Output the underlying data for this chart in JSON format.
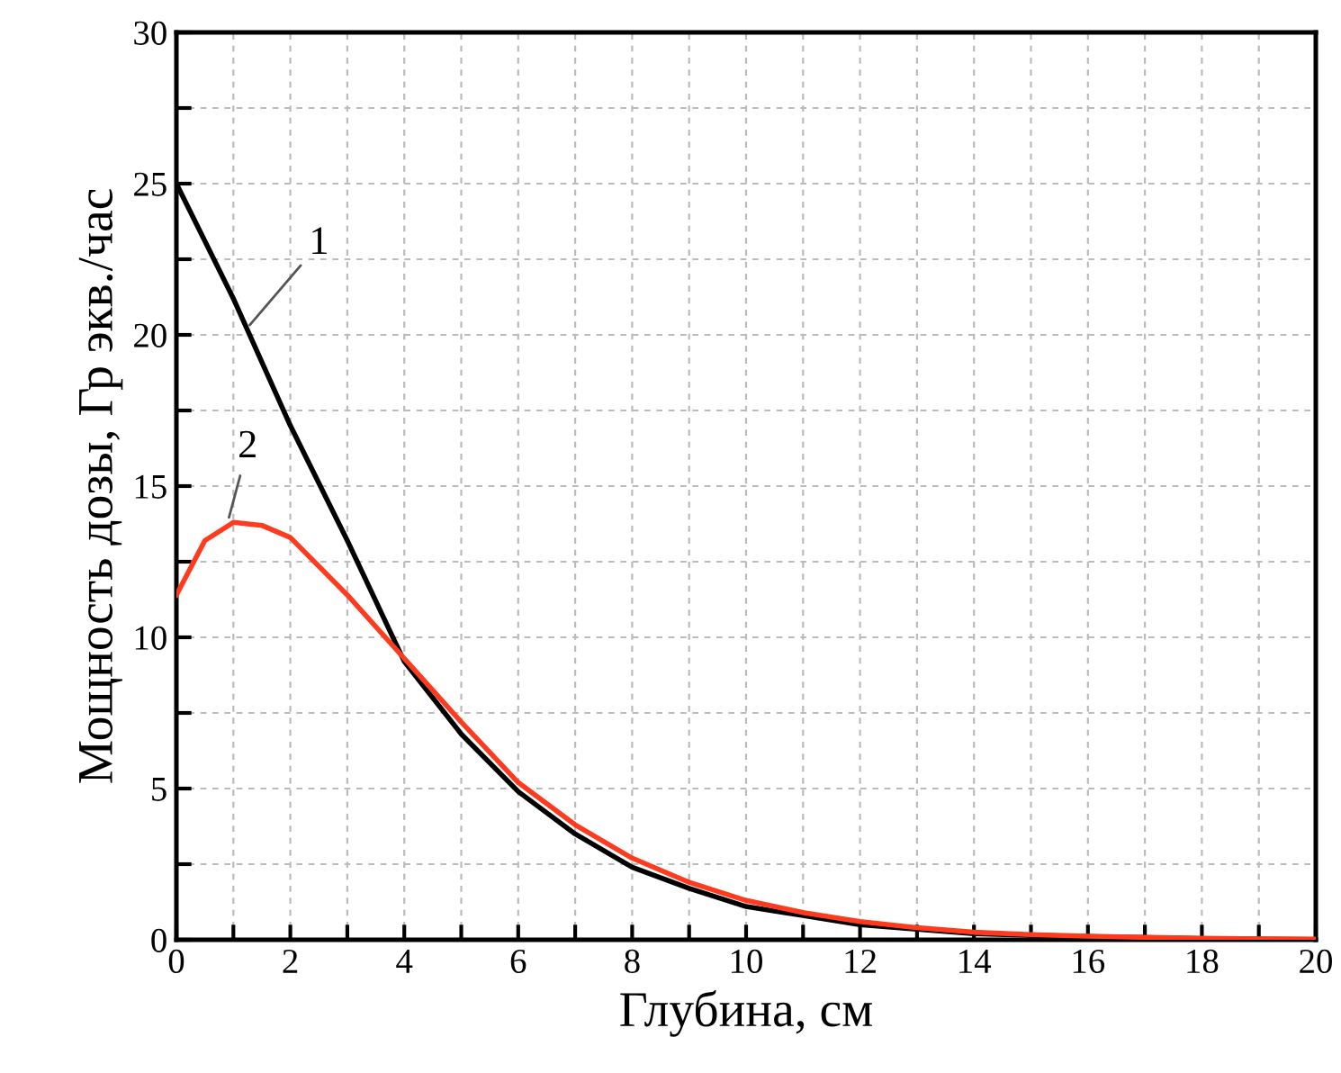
{
  "chart_data": {
    "type": "line",
    "xlabel": "Глубина, см",
    "ylabel": "Мощность дозы, Гр экв./час",
    "x": [
      0,
      1,
      2,
      3,
      4,
      5,
      6,
      7,
      8,
      9,
      10,
      11,
      12,
      13,
      14,
      15,
      16,
      17,
      18,
      19,
      20
    ],
    "series": [
      {
        "color": "#000000",
        "values": [
          25,
          21.2,
          17.0,
          13.2,
          9.2,
          6.8,
          4.9,
          3.5,
          2.4,
          1.7,
          1.1,
          0.8,
          0.5,
          0.35,
          0.2,
          0.15,
          0.1,
          0.07,
          0.04,
          0.02,
          0.01
        ]
      },
      {
        "color": "#ff3b1f",
        "x": [
          0,
          0.5,
          1,
          1.5,
          2,
          3,
          4,
          5,
          6,
          7,
          8,
          9,
          10,
          11,
          12,
          13,
          14,
          15,
          16,
          17,
          18,
          19,
          20
        ],
        "values": [
          11.4,
          13.2,
          13.8,
          13.7,
          13.3,
          11.4,
          9.3,
          7.2,
          5.2,
          3.8,
          2.7,
          1.9,
          1.3,
          0.9,
          0.6,
          0.4,
          0.25,
          0.17,
          0.12,
          0.08,
          0.05,
          0.03,
          0.02
        ]
      }
    ],
    "annotations": [
      {
        "text": "1",
        "x": 1.23,
        "y": 20.2
      },
      {
        "text": "2",
        "x": 0.9,
        "y": 13.8
      }
    ],
    "xlim": [
      0,
      20
    ],
    "ylim": [
      0,
      30
    ],
    "xticks": [
      0,
      {
        "value": 1,
        "label": null
      },
      2,
      {
        "value": 3,
        "label": null
      },
      4,
      {
        "value": 5,
        "label": null
      },
      6,
      {
        "value": 7,
        "label": null
      },
      8,
      {
        "value": 9,
        "label": null
      },
      10,
      {
        "value": 11,
        "label": null
      },
      12,
      {
        "value": 13,
        "label": null
      },
      14,
      {
        "value": 15,
        "label": null
      },
      16,
      {
        "value": 17,
        "label": null
      },
      18,
      {
        "value": 19,
        "label": null
      },
      20
    ],
    "yticks": [
      0,
      {
        "value": 2.5,
        "label": null
      },
      5,
      {
        "value": 7.5,
        "label": null
      },
      10,
      {
        "value": 12.5,
        "label": null
      },
      15,
      {
        "value": 17.5,
        "label": null
      },
      20,
      {
        "value": 22.5,
        "label": null
      },
      25,
      {
        "value": 27.5,
        "label": null
      },
      30
    ],
    "grid": true,
    "line_style": "solid",
    "marker": "none"
  }
}
